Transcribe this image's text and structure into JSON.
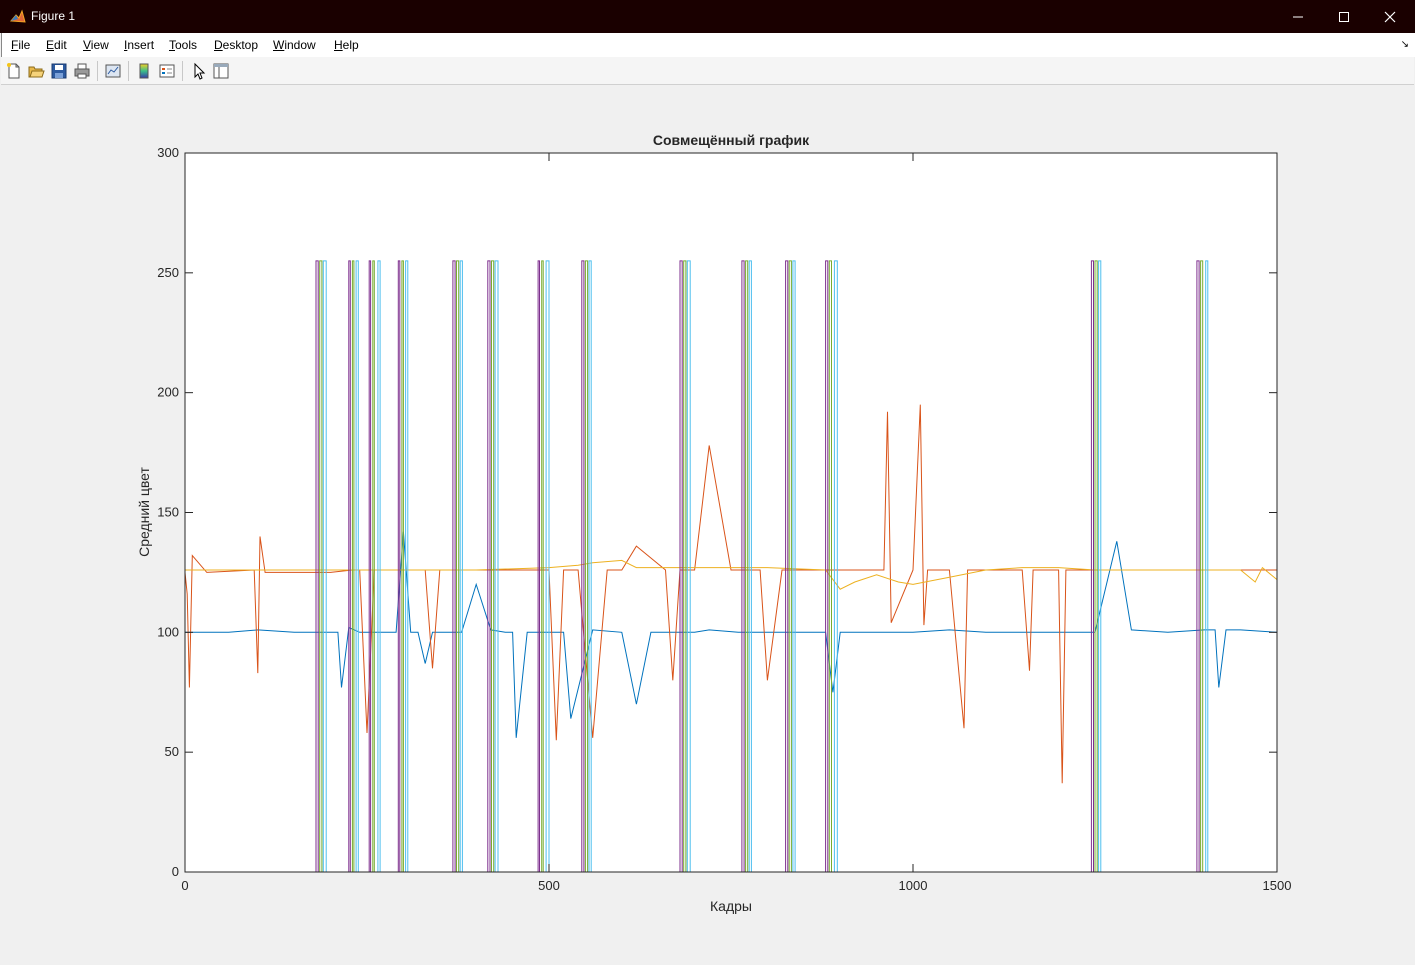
{
  "window": {
    "title": "Figure 1",
    "icon": "matlab-icon"
  },
  "menu": {
    "items": [
      {
        "label": "File",
        "key": "F",
        "rest": "ile"
      },
      {
        "label": "Edit",
        "key": "E",
        "rest": "dit"
      },
      {
        "label": "View",
        "key": "V",
        "rest": "iew"
      },
      {
        "label": "Insert",
        "key": "I",
        "rest": "nsert"
      },
      {
        "label": "Tools",
        "key": "T",
        "rest": "ools"
      },
      {
        "label": "Desktop",
        "key": "D",
        "rest": "esktop"
      },
      {
        "label": "Window",
        "key": "W",
        "rest": "indow"
      },
      {
        "label": "Help",
        "key": "H",
        "rest": "elp"
      }
    ]
  },
  "toolbar": {
    "icons": [
      "new-figure-icon",
      "open-file-icon",
      "save-icon",
      "print-icon",
      "link-plot-icon",
      "insert-colorbar-icon",
      "insert-legend-icon",
      "edit-plot-icon",
      "property-inspector-icon"
    ]
  },
  "chart_data": {
    "type": "line",
    "title": "Совмещённый график",
    "xlabel": "Кадры",
    "ylabel": "Средний цвет",
    "xlim": [
      0,
      1500
    ],
    "ylim": [
      0,
      300
    ],
    "xticks": [
      "0",
      "500",
      "1000",
      "1500"
    ],
    "yticks": [
      "0",
      "50",
      "100",
      "150",
      "200",
      "250",
      "300"
    ],
    "grid": false,
    "colors": [
      "#0072bd",
      "#d95319",
      "#edb120",
      "#7e2f8e",
      "#77ac30",
      "#4dbeee"
    ],
    "series": [
      {
        "color": "#0072bd",
        "x": [
          0,
          10,
          60,
          100,
          150,
          180,
          195,
          210,
          215,
          225,
          240,
          270,
          290,
          300,
          310,
          320,
          330,
          340,
          380,
          400,
          420,
          440,
          450,
          455,
          470,
          500,
          520,
          530,
          560,
          600,
          620,
          640,
          680,
          700,
          720,
          760,
          800,
          850,
          880,
          890,
          900,
          950,
          1000,
          1050,
          1100,
          1150,
          1200,
          1250,
          1280,
          1300,
          1350,
          1400,
          1415,
          1420,
          1430,
          1450,
          1500
        ],
        "y": [
          100,
          100,
          100,
          101,
          100,
          100,
          100,
          100,
          77,
          102,
          100,
          100,
          100,
          142,
          100,
          100,
          87,
          100,
          100,
          120,
          101,
          100,
          100,
          56,
          100,
          100,
          100,
          64,
          101,
          100,
          70,
          100,
          100,
          100,
          101,
          100,
          100,
          100,
          100,
          75,
          100,
          100,
          100,
          101,
          100,
          100,
          100,
          100,
          138,
          101,
          100,
          101,
          101,
          77,
          101,
          101,
          100
        ]
      },
      {
        "color": "#d95319",
        "x": [
          0,
          3,
          6,
          10,
          30,
          95,
          100,
          103,
          110,
          150,
          180,
          200,
          230,
          240,
          250,
          260,
          280,
          300,
          330,
          340,
          350,
          380,
          400,
          420,
          450,
          480,
          500,
          510,
          520,
          540,
          560,
          580,
          600,
          620,
          660,
          670,
          680,
          700,
          720,
          750,
          790,
          800,
          820,
          900,
          960,
          965,
          970,
          1000,
          1010,
          1015,
          1020,
          1050,
          1070,
          1075,
          1090,
          1150,
          1160,
          1165,
          1200,
          1205,
          1210,
          1250,
          1300,
          1350,
          1400,
          1450,
          1500
        ],
        "y": [
          125,
          116,
          77,
          132,
          125,
          126,
          83,
          140,
          125,
          125,
          125,
          125,
          126,
          126,
          58,
          126,
          126,
          126,
          126,
          85,
          126,
          126,
          126,
          126,
          126,
          126,
          126,
          55,
          126,
          126,
          56,
          126,
          126,
          136,
          126,
          80,
          126,
          126,
          178,
          126,
          126,
          80,
          126,
          126,
          126,
          192,
          104,
          126,
          195,
          103,
          126,
          126,
          60,
          126,
          126,
          126,
          84,
          126,
          126,
          37,
          126,
          126,
          126,
          126,
          126,
          126,
          126
        ]
      },
      {
        "color": "#edb120",
        "x": [
          0,
          100,
          200,
          300,
          400,
          500,
          540,
          560,
          600,
          620,
          700,
          800,
          880,
          900,
          920,
          950,
          980,
          1000,
          1050,
          1100,
          1150,
          1200,
          1250,
          1300,
          1350,
          1400,
          1450,
          1470,
          1480,
          1500
        ],
        "y": [
          126,
          126,
          126,
          126,
          126,
          127,
          128,
          129,
          130,
          127,
          127,
          127,
          126,
          118,
          121,
          124,
          121,
          120,
          123,
          126,
          127,
          127,
          126,
          126,
          126,
          126,
          126,
          121,
          127,
          122
        ]
      },
      {
        "color": "#7e2f8e",
        "x": [
          0,
          180,
          180,
          183,
          183,
          225,
          225,
          227,
          227,
          253,
          253,
          255,
          255,
          293,
          293,
          295,
          295,
          368,
          368,
          371,
          371,
          416,
          416,
          419,
          419,
          485,
          485,
          487,
          487,
          545,
          545,
          548,
          548,
          680,
          680,
          683,
          683,
          765,
          765,
          768,
          768,
          825,
          825,
          828,
          828,
          880,
          880,
          883,
          883,
          1245,
          1245,
          1248,
          1248,
          1390,
          1390,
          1393,
          1393,
          1500
        ],
        "y": [
          0,
          0,
          255,
          255,
          0,
          0,
          255,
          255,
          0,
          0,
          255,
          255,
          0,
          0,
          255,
          255,
          0,
          0,
          255,
          255,
          0,
          0,
          255,
          255,
          0,
          0,
          255,
          255,
          0,
          0,
          255,
          255,
          0,
          0,
          255,
          255,
          0,
          0,
          255,
          255,
          0,
          0,
          255,
          255,
          0,
          0,
          255,
          255,
          0,
          0,
          255,
          255,
          0,
          0,
          255,
          255,
          0,
          0
        ]
      },
      {
        "color": "#77ac30",
        "x": [
          0,
          185,
          185,
          188,
          188,
          230,
          230,
          232,
          232,
          258,
          258,
          260,
          260,
          298,
          298,
          300,
          300,
          373,
          373,
          376,
          376,
          421,
          421,
          424,
          424,
          490,
          490,
          492,
          492,
          550,
          550,
          553,
          553,
          685,
          685,
          688,
          688,
          770,
          770,
          773,
          773,
          830,
          830,
          833,
          833,
          885,
          885,
          888,
          888,
          1250,
          1250,
          1253,
          1253,
          1395,
          1395,
          1398,
          1398,
          1500
        ],
        "y": [
          0,
          0,
          255,
          255,
          0,
          0,
          255,
          255,
          0,
          0,
          255,
          255,
          0,
          0,
          255,
          255,
          0,
          0,
          255,
          255,
          0,
          0,
          255,
          255,
          0,
          0,
          255,
          255,
          0,
          0,
          255,
          255,
          0,
          0,
          255,
          255,
          0,
          0,
          255,
          255,
          0,
          0,
          255,
          255,
          0,
          0,
          255,
          255,
          0,
          0,
          255,
          255,
          0,
          0,
          255,
          255,
          0,
          0
        ]
      },
      {
        "color": "#4dbeee",
        "x": [
          0,
          190,
          190,
          194,
          194,
          235,
          235,
          238,
          238,
          265,
          265,
          268,
          268,
          303,
          303,
          306,
          306,
          378,
          378,
          381,
          381,
          426,
          426,
          430,
          430,
          496,
          496,
          500,
          500,
          555,
          555,
          558,
          558,
          690,
          690,
          694,
          694,
          775,
          775,
          778,
          778,
          835,
          835,
          838,
          838,
          892,
          892,
          896,
          896,
          1255,
          1255,
          1258,
          1258,
          1402,
          1402,
          1405,
          1405,
          1500
        ],
        "y": [
          0,
          0,
          255,
          255,
          0,
          0,
          255,
          255,
          0,
          0,
          255,
          255,
          0,
          0,
          255,
          255,
          0,
          0,
          255,
          255,
          0,
          0,
          255,
          255,
          0,
          0,
          255,
          255,
          0,
          0,
          255,
          255,
          0,
          0,
          255,
          255,
          0,
          0,
          255,
          255,
          0,
          0,
          255,
          255,
          0,
          0,
          255,
          255,
          0,
          0,
          255,
          255,
          0,
          0,
          255,
          255,
          0,
          0
        ]
      }
    ]
  }
}
